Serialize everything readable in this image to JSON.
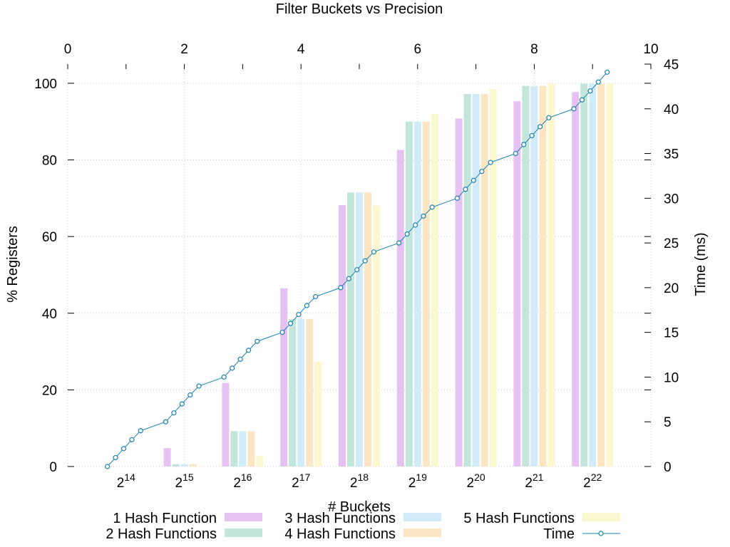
{
  "chart_data": {
    "type": "bar",
    "title": "Filter Buckets vs Precision",
    "xlabel": "# Buckets",
    "ylabel": "% Registers",
    "y2label": "Time (ms)",
    "categories": [
      {
        "base": "2",
        "exp": "14"
      },
      {
        "base": "2",
        "exp": "15"
      },
      {
        "base": "2",
        "exp": "16"
      },
      {
        "base": "2",
        "exp": "17"
      },
      {
        "base": "2",
        "exp": "18"
      },
      {
        "base": "2",
        "exp": "19"
      },
      {
        "base": "2",
        "exp": "20"
      },
      {
        "base": "2",
        "exp": "21"
      },
      {
        "base": "2",
        "exp": "22"
      }
    ],
    "ylim": [
      0,
      105
    ],
    "yticks": [
      "0",
      "20",
      "40",
      "60",
      "80",
      "100"
    ],
    "y2lim": [
      0,
      45
    ],
    "y2ticks": [
      "0",
      "5",
      "10",
      "15",
      "20",
      "25",
      "30",
      "35",
      "40",
      "45"
    ],
    "x2lim": [
      0,
      10
    ],
    "x2ticks": [
      "0",
      "2",
      "4",
      "6",
      "8",
      "10"
    ],
    "grid": true,
    "legend_position": "bottom",
    "series": [
      {
        "name": "1 Hash Function",
        "color": "#e6c2f2",
        "values": [
          0.1,
          4.8,
          21.8,
          46.5,
          68.2,
          82.6,
          90.8,
          95.3,
          97.7
        ]
      },
      {
        "name": "2 Hash Functions",
        "color": "#c2e6db",
        "values": [
          0,
          0.6,
          9.2,
          38.5,
          71.5,
          90.0,
          97.2,
          99.3,
          99.9
        ]
      },
      {
        "name": "3 Hash Functions",
        "color": "#d2ebf8",
        "values": [
          0,
          0.6,
          9.2,
          38.5,
          71.5,
          90.0,
          97.2,
          99.3,
          99.9
        ]
      },
      {
        "name": "4 Hash Functions",
        "color": "#fae6c2",
        "values": [
          0,
          0.6,
          9.2,
          38.5,
          71.5,
          90.0,
          97.2,
          99.3,
          99.9
        ]
      },
      {
        "name": "5 Hash Functions",
        "color": "#fbf8d0",
        "values": [
          0,
          0.1,
          2.8,
          27.3,
          68.1,
          92.0,
          98.5,
          99.9,
          100
        ]
      }
    ],
    "time_series": {
      "name": "Time",
      "color": "#1a7fb0",
      "x": [
        0.68,
        0.82,
        0.96,
        1.1,
        1.25,
        1.68,
        1.82,
        1.96,
        2.1,
        2.25,
        2.68,
        2.82,
        2.96,
        3.1,
        3.25,
        3.68,
        3.82,
        3.96,
        4.1,
        4.25,
        4.68,
        4.82,
        4.96,
        5.1,
        5.25,
        5.68,
        5.82,
        5.96,
        6.1,
        6.25,
        6.68,
        6.82,
        6.96,
        7.1,
        7.25,
        7.68,
        7.82,
        7.96,
        8.1,
        8.25,
        8.68,
        8.82,
        8.96,
        9.1,
        9.25
      ],
      "y": [
        0,
        1,
        2,
        3,
        4,
        5,
        6,
        7,
        8,
        9,
        10,
        11,
        12,
        13,
        14,
        15,
        16,
        17,
        18,
        19,
        20,
        21,
        22,
        23,
        24,
        25,
        26,
        27,
        28,
        29,
        30,
        31,
        32,
        33,
        34,
        35,
        36,
        37,
        38,
        39,
        40,
        41,
        42,
        43,
        44.1
      ]
    }
  }
}
